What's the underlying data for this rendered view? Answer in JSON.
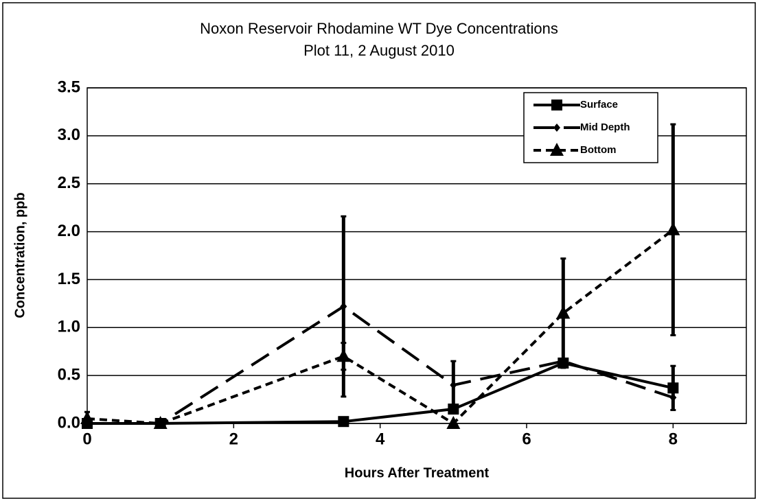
{
  "chart_data": {
    "type": "line",
    "title": "Noxon Reservoir Rhodamine WT Dye Concentrations",
    "subtitle": "Plot 11, 2 August 2010",
    "x_label": "Hours After Treatment",
    "y_label": "Concentration, ppb",
    "x": [
      0,
      1,
      3.5,
      5,
      6.5,
      8
    ],
    "series": [
      {
        "name": "Surface",
        "color": "#000000",
        "dash": "solid",
        "marker": "square",
        "values": [
          0,
          0,
          0.02,
          0.15,
          0.63,
          0.37
        ],
        "errors": [
          null,
          null,
          null,
          null,
          null,
          0.23
        ]
      },
      {
        "name": "Mid Depth",
        "color": "#000000",
        "dash": "long",
        "marker": "diamond",
        "values": [
          0,
          0,
          1.22,
          0.4,
          0.65,
          0.27
        ],
        "errors": [
          null,
          null,
          0.94,
          0.25,
          null,
          null
        ]
      },
      {
        "name": "Bottom",
        "color": "#000000",
        "dash": "short",
        "marker": "triangle",
        "values": [
          0.05,
          0,
          0.7,
          0,
          1.15,
          2.02
        ],
        "errors": [
          0.07,
          null,
          0.14,
          null,
          0.57,
          1.1
        ]
      }
    ],
    "xlim": [
      0,
      9
    ],
    "xticks": [
      0,
      2,
      4,
      6,
      8
    ],
    "ylim": [
      0,
      3.5
    ],
    "yticks": [
      {
        "value": 0,
        "label": "0.0"
      },
      0.5,
      {
        "value": 1,
        "label": "1.0"
      },
      1.5,
      {
        "value": 2,
        "label": "2.0"
      },
      2.5,
      {
        "value": 3,
        "label": "3.0"
      },
      3.5
    ],
    "grid": true,
    "legend": "upper right"
  }
}
